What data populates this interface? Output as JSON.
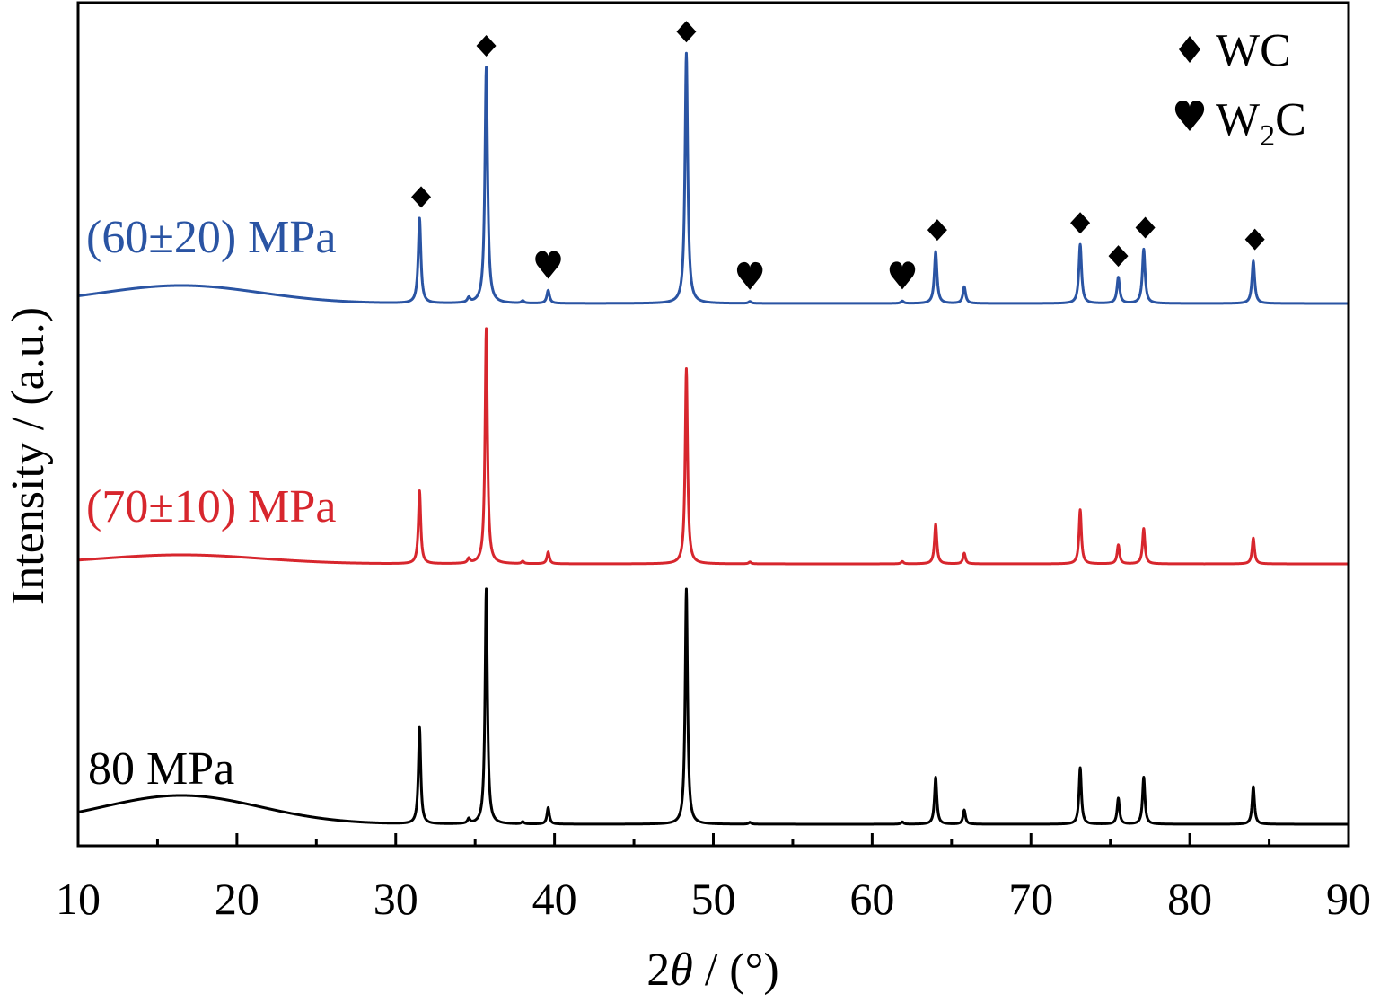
{
  "chart_data": {
    "type": "line",
    "title": "",
    "xlabel_prefix": "2",
    "xlabel_symbol": "θ",
    "xlabel_suffix": " / (°)",
    "ylabel": "Intensity / (a.u.)",
    "xlim": [
      10,
      90
    ],
    "xticks": [
      10,
      20,
      30,
      40,
      50,
      60,
      70,
      80,
      90
    ],
    "xtick_labels": [
      "10",
      "20",
      "30",
      "40",
      "50",
      "60",
      "70",
      "80",
      "90"
    ],
    "grid": false,
    "legend_position": "top-right",
    "legend": [
      {
        "marker": "diamond",
        "label": "WC",
        "label_main": "WC",
        "label_sub": "",
        "label_tail": ""
      },
      {
        "marker": "heart",
        "label": "W2C",
        "label_main": "W",
        "label_sub": "2",
        "label_tail": "C"
      }
    ],
    "phase_markers": {
      "series": "(60±20) MPa",
      "WC": [
        31.6,
        35.7,
        48.3,
        64.1,
        73.1,
        75.5,
        77.2,
        84.1
      ],
      "W2C": [
        39.6,
        52.3,
        61.9
      ]
    },
    "series": [
      {
        "name": "(60±20) MPa",
        "color": "#2a54a3",
        "peaks": [
          {
            "x": 31.5,
            "h": 0.36
          },
          {
            "x": 34.6,
            "h": 0.02
          },
          {
            "x": 35.7,
            "h": 1.0
          },
          {
            "x": 38.0,
            "h": 0.01
          },
          {
            "x": 39.6,
            "h": 0.055
          },
          {
            "x": 48.3,
            "h": 1.06
          },
          {
            "x": 52.3,
            "h": 0.008
          },
          {
            "x": 61.9,
            "h": 0.01
          },
          {
            "x": 64.0,
            "h": 0.22
          },
          {
            "x": 65.8,
            "h": 0.07
          },
          {
            "x": 73.1,
            "h": 0.25
          },
          {
            "x": 75.5,
            "h": 0.11
          },
          {
            "x": 77.1,
            "h": 0.23
          },
          {
            "x": 84.0,
            "h": 0.18
          }
        ]
      },
      {
        "name": "(70±10) MPa",
        "color": "#d7262d",
        "peaks": [
          {
            "x": 31.5,
            "h": 0.31
          },
          {
            "x": 34.6,
            "h": 0.02
          },
          {
            "x": 35.7,
            "h": 1.0
          },
          {
            "x": 38.0,
            "h": 0.01
          },
          {
            "x": 39.6,
            "h": 0.05
          },
          {
            "x": 48.3,
            "h": 0.83
          },
          {
            "x": 52.3,
            "h": 0.008
          },
          {
            "x": 61.9,
            "h": 0.01
          },
          {
            "x": 64.0,
            "h": 0.17
          },
          {
            "x": 65.8,
            "h": 0.045
          },
          {
            "x": 73.1,
            "h": 0.23
          },
          {
            "x": 75.5,
            "h": 0.08
          },
          {
            "x": 77.1,
            "h": 0.15
          },
          {
            "x": 84.0,
            "h": 0.11
          }
        ]
      },
      {
        "name": "80 MPa",
        "color": "#000000",
        "peaks": [
          {
            "x": 31.5,
            "h": 0.41
          },
          {
            "x": 34.6,
            "h": 0.02
          },
          {
            "x": 35.7,
            "h": 1.0
          },
          {
            "x": 38.0,
            "h": 0.01
          },
          {
            "x": 39.6,
            "h": 0.07
          },
          {
            "x": 48.3,
            "h": 1.0
          },
          {
            "x": 52.3,
            "h": 0.008
          },
          {
            "x": 61.9,
            "h": 0.01
          },
          {
            "x": 64.0,
            "h": 0.2
          },
          {
            "x": 65.8,
            "h": 0.06
          },
          {
            "x": 73.1,
            "h": 0.24
          },
          {
            "x": 75.5,
            "h": 0.11
          },
          {
            "x": 77.1,
            "h": 0.2
          },
          {
            "x": 84.0,
            "h": 0.16
          }
        ]
      }
    ]
  }
}
